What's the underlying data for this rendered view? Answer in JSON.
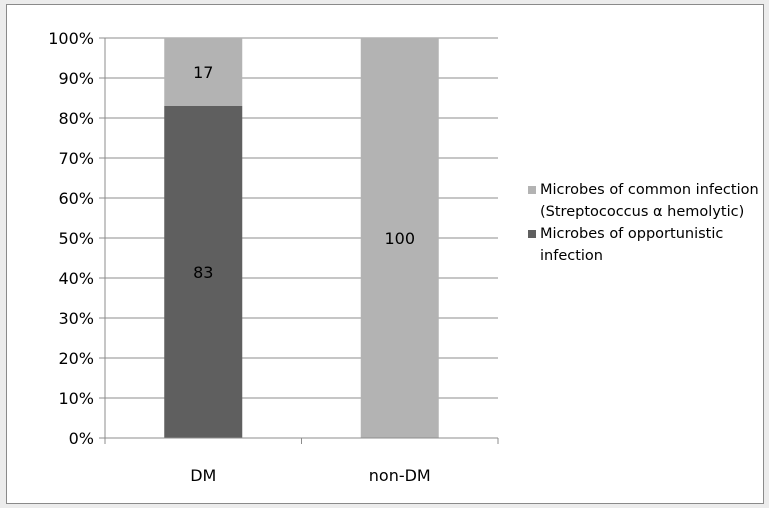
{
  "chart_data": {
    "type": "bar",
    "stacked": true,
    "percent": true,
    "categories": [
      "DM",
      "non-DM"
    ],
    "series": [
      {
        "name": "Microbes of opportunistic infection",
        "values": [
          83,
          0
        ],
        "labels": [
          "83",
          ""
        ],
        "color": "#5f5f5f"
      },
      {
        "name": "Microbes of common infection (Streptococcus α hemolytic)",
        "values": [
          17,
          100
        ],
        "labels": [
          "17",
          "100"
        ],
        "color": "#b3b3b3"
      }
    ],
    "y_ticks": [
      "0%",
      "10%",
      "20%",
      "30%",
      "40%",
      "50%",
      "60%",
      "70%",
      "80%",
      "90%",
      "100%"
    ],
    "ylim": [
      0,
      100
    ],
    "grid": true,
    "legend_position": "right",
    "title": "",
    "xlabel": "",
    "ylabel": ""
  },
  "legend": {
    "items": [
      {
        "label": "Microbes of common infection (Streptococcus α hemolytic)",
        "color": "#b3b3b3"
      },
      {
        "label": "Microbes of opportunistic infection",
        "color": "#5f5f5f"
      }
    ]
  }
}
